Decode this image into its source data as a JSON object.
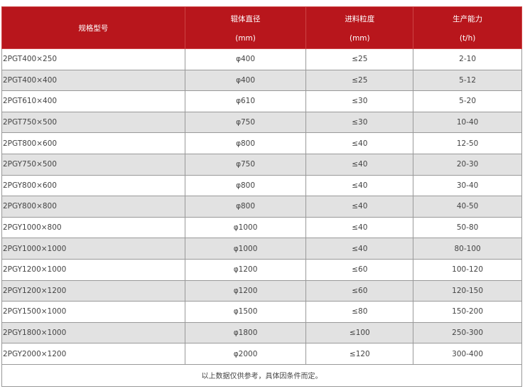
{
  "headers": {
    "model": "规格型号",
    "diameter": "辊体直径",
    "diameter_unit": "(mm)",
    "feed": "进料粒度",
    "feed_unit": "(mm)",
    "capacity": "生产能力",
    "capacity_unit": "(t/h)"
  },
  "rows": [
    [
      "2PGT400×250",
      "φ400",
      "≤25",
      "2-10"
    ],
    [
      "2PGT400×400",
      "φ400",
      "≤25",
      "5-12"
    ],
    [
      "2PGT610×400",
      "φ610",
      "≤30",
      "5-20"
    ],
    [
      "2PGT750×500",
      "φ750",
      "≤30",
      "10-40"
    ],
    [
      "2PGT800×600",
      "φ800",
      "≤40",
      "12-50"
    ],
    [
      "2PGY750×500",
      "φ750",
      "≤40",
      "20-30"
    ],
    [
      "2PGY800×600",
      "φ800",
      "≤40",
      "30-40"
    ],
    [
      "2PGY800×800",
      "φ800",
      "≤40",
      "40-50"
    ],
    [
      "2PGY1000×800",
      "φ1000",
      "≤40",
      "50-80"
    ],
    [
      "2PGY1000×1000",
      "φ1000",
      "≤40",
      "80-100"
    ],
    [
      "2PGY1200×1000",
      "φ1200",
      "≤60",
      "100-120"
    ],
    [
      "2PGY1200×1200",
      "φ1200",
      "≤60",
      "120-150"
    ],
    [
      "2PGY1500×1000",
      "φ1500",
      "≤80",
      "150-200"
    ],
    [
      "2PGY1800×1000",
      "φ1800",
      "≤100",
      "250-300"
    ],
    [
      "2PGY2000×1200",
      "φ2000",
      "≤120",
      "300-400"
    ]
  ],
  "footer": "以上数据仅供参考，具体因条件而定。",
  "colors": {
    "header_bg": "#b8161c",
    "alt_row": "#e2e2e2"
  }
}
